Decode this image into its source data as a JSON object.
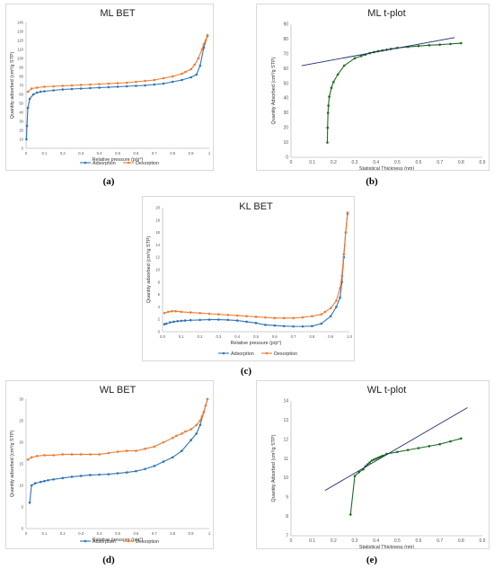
{
  "captions": [
    "(a)",
    "(b)",
    "(c)",
    "(d)",
    "(e)"
  ],
  "chart_data": [
    {
      "id": "a",
      "type": "line",
      "title": "ML BET",
      "xlabel": "Relative pressure (p/p°)",
      "ylabel": "Quantity adsorbed (cm³/g STP)",
      "xlim": [
        0,
        1
      ],
      "ylim": [
        0,
        140
      ],
      "xticks": [
        0,
        0.1,
        0.2,
        0.3,
        0.4,
        0.5,
        0.6,
        0.7,
        0.8,
        0.9,
        1
      ],
      "xtick_labels": [
        "0",
        "0.1",
        "0.2",
        "0.3",
        "0.4",
        "0.5",
        "0.6",
        "0.7",
        "0.8",
        "0.9",
        "1"
      ],
      "yticks": [
        0,
        10,
        20,
        30,
        40,
        50,
        60,
        70,
        80,
        90,
        100,
        110,
        120,
        130,
        140
      ],
      "ytick_labels": [
        "0",
        "10",
        "20",
        "30",
        "40",
        "50",
        "60",
        "70",
        "80",
        "90",
        "100",
        "110",
        "120",
        "130",
        "140"
      ],
      "grid": false,
      "legend_position": "bottom",
      "series": [
        {
          "name": "Adsorption",
          "color": "#2e75b6",
          "marker": true,
          "x": [
            0.002,
            0.005,
            0.01,
            0.02,
            0.04,
            0.06,
            0.08,
            0.1,
            0.15,
            0.2,
            0.25,
            0.3,
            0.35,
            0.4,
            0.45,
            0.5,
            0.55,
            0.6,
            0.65,
            0.7,
            0.75,
            0.8,
            0.85,
            0.9,
            0.93,
            0.95,
            0.97,
            0.99
          ],
          "y": [
            10,
            25,
            45,
            55,
            60,
            62,
            63,
            63.5,
            64.5,
            65.5,
            66,
            66.5,
            67,
            67.5,
            68,
            68.5,
            69,
            69.5,
            70,
            71,
            72,
            74,
            76,
            79,
            82,
            92,
            112,
            125
          ]
        },
        {
          "name": "Desorption",
          "color": "#ed7d31",
          "marker": true,
          "x": [
            0.99,
            0.98,
            0.97,
            0.96,
            0.94,
            0.92,
            0.9,
            0.87,
            0.85,
            0.8,
            0.75,
            0.7,
            0.65,
            0.6,
            0.55,
            0.5,
            0.45,
            0.4,
            0.35,
            0.3,
            0.25,
            0.2,
            0.15,
            0.1,
            0.06,
            0.03,
            0.01
          ],
          "y": [
            126,
            120,
            116,
            110,
            100,
            93,
            88,
            85,
            83,
            80,
            78,
            76,
            75,
            74,
            73,
            72.5,
            72,
            71.5,
            71,
            70.5,
            70,
            69.5,
            69,
            68.5,
            67.5,
            66.5,
            63
          ]
        }
      ]
    },
    {
      "id": "b",
      "type": "scatter",
      "title": "ML t-plot",
      "xlabel": "Statistical Thickness (nm)",
      "ylabel": "Quantity Adsorbed (cm³/g STP)",
      "xlim": [
        0,
        0.9
      ],
      "ylim": [
        0,
        90
      ],
      "xticks": [
        0,
        0.1,
        0.2,
        0.3,
        0.4,
        0.5,
        0.6,
        0.7,
        0.8,
        0.9
      ],
      "xtick_labels": [
        "0",
        "0.1",
        "0.2",
        "0.3",
        "0.4",
        "0.5",
        "0.6",
        "0.7",
        "0.8",
        "0.9"
      ],
      "yticks": [
        0,
        10,
        20,
        30,
        40,
        50,
        60,
        70,
        80,
        90
      ],
      "ytick_labels": [
        "0",
        "10",
        "20",
        "30",
        "40",
        "50",
        "60",
        "70",
        "80",
        "90"
      ],
      "grid": false,
      "series": [
        {
          "name": "",
          "color": "#1f6b1f",
          "marker": true,
          "x": [
            0.171,
            0.172,
            0.174,
            0.176,
            0.18,
            0.19,
            0.2,
            0.22,
            0.25,
            0.3,
            0.33,
            0.35,
            0.37,
            0.39,
            0.41,
            0.43,
            0.45,
            0.47,
            0.5,
            0.55,
            0.6,
            0.65,
            0.7,
            0.75,
            0.8
          ],
          "y": [
            10,
            20,
            30,
            35,
            41,
            47,
            51,
            56,
            62,
            67,
            68.5,
            69.5,
            70.5,
            71.2,
            71.8,
            72.3,
            72.8,
            73.3,
            74,
            74.7,
            75.3,
            75.8,
            76.2,
            76.7,
            77.2
          ]
        },
        {
          "name": "",
          "color": "#1f2d6b",
          "marker": false,
          "x": [
            0.05,
            0.77
          ],
          "y": [
            62,
            81
          ]
        }
      ]
    },
    {
      "id": "c",
      "type": "line",
      "title": "KL BET",
      "xlabel": "Relative pressure (p/p°)",
      "ylabel": "Quantity adsorbed (cm³/g STP)",
      "xlim": [
        0,
        1
      ],
      "ylim": [
        0,
        20
      ],
      "xticks": [
        0,
        0.1,
        0.2,
        0.3,
        0.4,
        0.5,
        0.6,
        0.7,
        0.8,
        0.9,
        1
      ],
      "xtick_labels": [
        "0.0",
        "0.1",
        "0.2",
        "0.3",
        "0.4",
        "0.5",
        "0.6",
        "0.7",
        "0.8",
        "0.9",
        "1.0"
      ],
      "yticks": [
        0,
        2,
        4,
        6,
        8,
        10,
        12,
        14,
        16,
        18,
        20
      ],
      "ytick_labels": [
        "0",
        "2",
        "4",
        "6",
        "8",
        "10",
        "12",
        "14",
        "16",
        "18",
        "20"
      ],
      "grid": false,
      "legend_position": "bottom",
      "series": [
        {
          "name": "Adsorption",
          "color": "#2e75b6",
          "marker": true,
          "x": [
            0.01,
            0.02,
            0.04,
            0.06,
            0.08,
            0.1,
            0.12,
            0.15,
            0.2,
            0.25,
            0.3,
            0.35,
            0.4,
            0.45,
            0.5,
            0.55,
            0.6,
            0.65,
            0.7,
            0.75,
            0.8,
            0.85,
            0.9,
            0.93,
            0.95,
            0.96,
            0.97,
            0.98,
            0.99
          ],
          "y": [
            1.2,
            1.3,
            1.5,
            1.6,
            1.7,
            1.75,
            1.8,
            1.85,
            1.9,
            1.95,
            1.95,
            1.9,
            1.8,
            1.6,
            1.4,
            1.1,
            1.0,
            0.9,
            0.85,
            0.85,
            0.9,
            1.3,
            2.5,
            4,
            5.5,
            8,
            12,
            16,
            19
          ]
        },
        {
          "name": "Desorption",
          "color": "#ed7d31",
          "marker": true,
          "x": [
            0.99,
            0.98,
            0.97,
            0.96,
            0.95,
            0.93,
            0.9,
            0.87,
            0.85,
            0.8,
            0.75,
            0.7,
            0.65,
            0.6,
            0.55,
            0.5,
            0.45,
            0.4,
            0.35,
            0.3,
            0.25,
            0.2,
            0.15,
            0.1,
            0.07,
            0.05,
            0.03,
            0.01
          ],
          "y": [
            19.2,
            16,
            12.5,
            9,
            7,
            5,
            3.8,
            3.2,
            2.8,
            2.5,
            2.3,
            2.2,
            2.2,
            2.2,
            2.3,
            2.4,
            2.5,
            2.6,
            2.7,
            2.8,
            2.9,
            3.0,
            3.1,
            3.2,
            3.3,
            3.3,
            3.2,
            3.0
          ]
        }
      ]
    },
    {
      "id": "d",
      "type": "line",
      "title": "WL BET",
      "xlabel": "Relative pressure (p/p°)",
      "ylabel": "Quantity adsorbed (cm³/g STP)",
      "xlim": [
        0,
        1
      ],
      "ylim": [
        0,
        30
      ],
      "xticks": [
        0,
        0.1,
        0.2,
        0.3,
        0.4,
        0.5,
        0.6,
        0.7,
        0.8,
        0.9,
        1
      ],
      "xtick_labels": [
        "0",
        "0.1",
        "0.2",
        "0.3",
        "0.4",
        "0.5",
        "0.6",
        "0.7",
        "0.8",
        "0.9",
        "1"
      ],
      "yticks": [
        0,
        5,
        10,
        15,
        20,
        25,
        30
      ],
      "ytick_labels": [
        "0",
        "5",
        "10",
        "15",
        "20",
        "25",
        "30"
      ],
      "grid": false,
      "legend_position": "bottom",
      "series": [
        {
          "name": "Adsorption",
          "color": "#2e75b6",
          "marker": true,
          "x": [
            0.02,
            0.03,
            0.05,
            0.08,
            0.1,
            0.12,
            0.15,
            0.2,
            0.25,
            0.3,
            0.35,
            0.4,
            0.45,
            0.5,
            0.55,
            0.6,
            0.65,
            0.7,
            0.75,
            0.8,
            0.85,
            0.9,
            0.93,
            0.95,
            0.97,
            0.99
          ],
          "y": [
            6,
            10,
            10.5,
            10.8,
            11,
            11.2,
            11.4,
            11.7,
            12,
            12.2,
            12.4,
            12.5,
            12.6,
            12.8,
            13,
            13.3,
            13.8,
            14.5,
            15.5,
            16.5,
            18,
            20.5,
            22,
            24,
            27,
            30
          ]
        },
        {
          "name": "Desorption",
          "color": "#ed7d31",
          "marker": true,
          "x": [
            0.99,
            0.98,
            0.97,
            0.96,
            0.95,
            0.93,
            0.9,
            0.87,
            0.85,
            0.82,
            0.8,
            0.75,
            0.7,
            0.65,
            0.6,
            0.55,
            0.5,
            0.45,
            0.4,
            0.35,
            0.3,
            0.25,
            0.2,
            0.15,
            0.1,
            0.06,
            0.03,
            0.01
          ],
          "y": [
            30,
            28.5,
            27,
            26,
            25,
            24,
            23,
            22.5,
            22,
            21.5,
            21,
            20,
            19,
            18.5,
            18,
            18,
            17.8,
            17.5,
            17.2,
            17.2,
            17.2,
            17.2,
            17.2,
            17,
            17,
            16.8,
            16.5,
            16
          ]
        }
      ]
    },
    {
      "id": "e",
      "type": "scatter",
      "title": "WL t-plot",
      "xlabel": "Statistical Thickness (nm)",
      "ylabel": "Quantity Adsorbed (cm³/g STP)",
      "xlim": [
        0,
        0.9
      ],
      "ylim": [
        7,
        14
      ],
      "xticks": [
        0,
        0.1,
        0.2,
        0.3,
        0.4,
        0.5,
        0.6,
        0.7,
        0.8,
        0.9
      ],
      "xtick_labels": [
        "0",
        "0.1",
        "0.2",
        "0.3",
        "0.4",
        "0.5",
        "0.6",
        "0.7",
        "0.8",
        "0.9"
      ],
      "yticks": [
        7,
        8,
        9,
        10,
        11,
        12,
        13,
        14
      ],
      "ytick_labels": [
        "7",
        "8",
        "9",
        "10",
        "11",
        "12",
        "13",
        "14"
      ],
      "grid": false,
      "series": [
        {
          "name": "",
          "color": "#1f6b1f",
          "marker": true,
          "x": [
            0.28,
            0.3,
            0.32,
            0.34,
            0.35,
            0.36,
            0.37,
            0.38,
            0.39,
            0.4,
            0.41,
            0.42,
            0.43,
            0.45,
            0.5,
            0.55,
            0.6,
            0.65,
            0.7,
            0.75,
            0.8
          ],
          "y": [
            8.1,
            10.1,
            10.3,
            10.45,
            10.6,
            10.7,
            10.8,
            10.9,
            10.95,
            11.0,
            11.05,
            11.1,
            11.15,
            11.25,
            11.35,
            11.45,
            11.55,
            11.65,
            11.75,
            11.9,
            12.05
          ]
        },
        {
          "name": "",
          "color": "#1f2d6b",
          "marker": false,
          "x": [
            0.16,
            0.83
          ],
          "y": [
            9.35,
            13.65
          ]
        }
      ]
    }
  ]
}
